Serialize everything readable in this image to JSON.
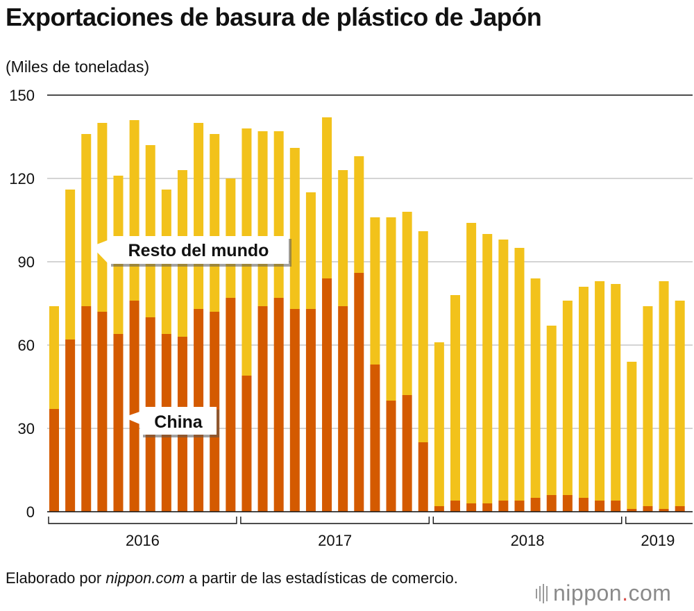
{
  "header": {
    "title": "Exportaciones de basura de plástico de Japón"
  },
  "chart_data": {
    "type": "bar",
    "stacked": true,
    "ylabel": "(Miles de toneladas)",
    "ylim": [
      0,
      150
    ],
    "yticks": [
      0,
      30,
      60,
      90,
      120,
      150
    ],
    "grid": true,
    "colors": {
      "china": "#d45a00",
      "rest": "#f2c21b"
    },
    "year_groups": [
      {
        "label": "2016",
        "start": 0,
        "end": 11
      },
      {
        "label": "2017",
        "start": 12,
        "end": 23
      },
      {
        "label": "2018",
        "start": 24,
        "end": 35
      },
      {
        "label": "2019",
        "start": 36,
        "end": 39
      }
    ],
    "series": [
      {
        "name": "China",
        "values": [
          37,
          62,
          74,
          72,
          64,
          76,
          70,
          64,
          63,
          73,
          72,
          77,
          49,
          74,
          77,
          73,
          73,
          84,
          74,
          86,
          53,
          40,
          42,
          25,
          2,
          4,
          3,
          3,
          4,
          4,
          5,
          6,
          6,
          5,
          4,
          4,
          1,
          2,
          1,
          2
        ]
      },
      {
        "name": "Resto del mundo",
        "values": [
          37,
          54,
          62,
          68,
          57,
          65,
          62,
          52,
          60,
          67,
          64,
          43,
          89,
          63,
          60,
          58,
          42,
          58,
          49,
          42,
          53,
          66,
          66,
          76,
          59,
          74,
          101,
          97,
          94,
          91,
          79,
          61,
          70,
          76,
          79,
          78,
          53,
          72,
          82,
          74
        ]
      }
    ],
    "totals": [
      74,
      116,
      136,
      140,
      121,
      141,
      132,
      116,
      123,
      140,
      136,
      120,
      138,
      137,
      137,
      131,
      115,
      142,
      123,
      128,
      106,
      106,
      108,
      101,
      61,
      78,
      104,
      100,
      98,
      95,
      84,
      67,
      76,
      81,
      83,
      82,
      54,
      74,
      83,
      76
    ]
  },
  "legend": {
    "rest_label": "Resto del mundo",
    "china_label": "China"
  },
  "footer": {
    "source_prefix": "Elaborado por ",
    "source_site": "nippon.com",
    "source_suffix": " a partir de las estadísticas de comercio.",
    "logo_main": "nippon",
    "logo_dot": ".",
    "logo_tld": "com"
  }
}
